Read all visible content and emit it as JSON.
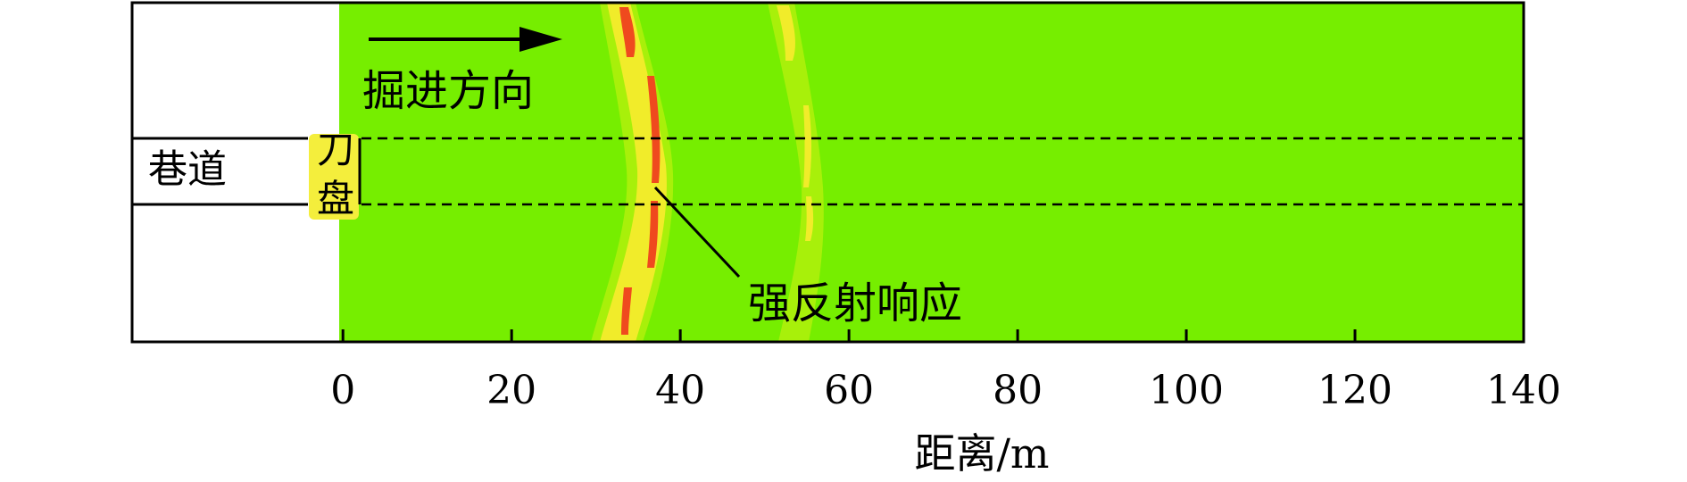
{
  "labels": {
    "direction": "掘进方向",
    "tunnel": "巷道",
    "cutter_char_1": "刀",
    "cutter_char_2": "盘",
    "reflection": "强反射响应"
  },
  "x_axis": {
    "label": "距离/m",
    "min": -25,
    "max": 140,
    "ticks": [
      0,
      20,
      40,
      60,
      80,
      100,
      120,
      140
    ]
  },
  "colors": {
    "background_field": "#76ee00",
    "weak_response": "#a8f00a",
    "medium_response": "#f1ec2a",
    "strong_response": "#ef4a1e",
    "cutter_head": "#f4ee3c",
    "outline": "#000000"
  }
}
